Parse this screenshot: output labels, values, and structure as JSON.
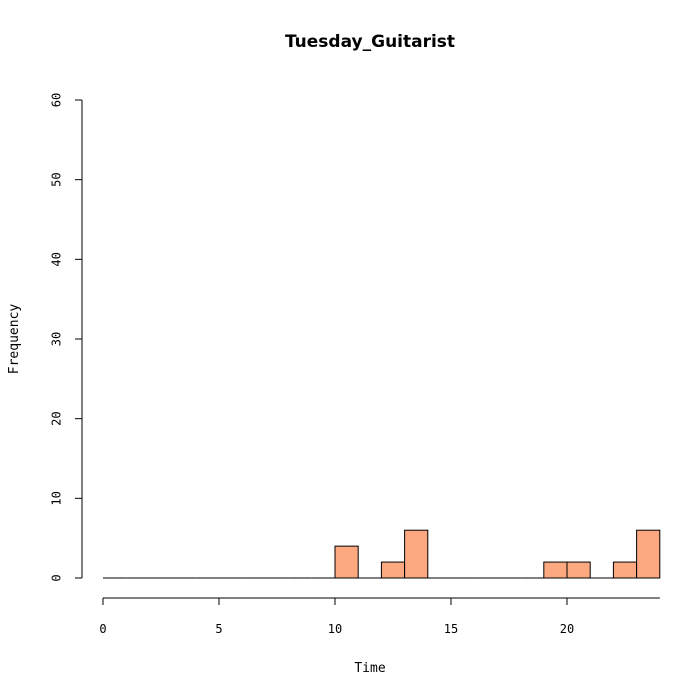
{
  "chart_data": {
    "type": "bar",
    "title": "Tuesday_Guitarist",
    "xlabel": "Time",
    "ylabel": "Frequency",
    "xlim": [
      0,
      24
    ],
    "ylim": [
      0,
      60
    ],
    "xticks": [
      0,
      5,
      10,
      15,
      20
    ],
    "yticks": [
      0,
      10,
      20,
      30,
      40,
      50,
      60
    ],
    "bin_width": 1,
    "bin_starts": [
      0,
      1,
      2,
      3,
      4,
      5,
      6,
      7,
      8,
      9,
      10,
      11,
      12,
      13,
      14,
      15,
      16,
      17,
      18,
      19,
      20,
      21,
      22,
      23
    ],
    "values": [
      0,
      0,
      0,
      0,
      0,
      0,
      0,
      0,
      0,
      0,
      4,
      0,
      2,
      6,
      0,
      0,
      0,
      0,
      0,
      2,
      2,
      0,
      2,
      6
    ],
    "bar_color": "#FCA982",
    "grid": false
  }
}
